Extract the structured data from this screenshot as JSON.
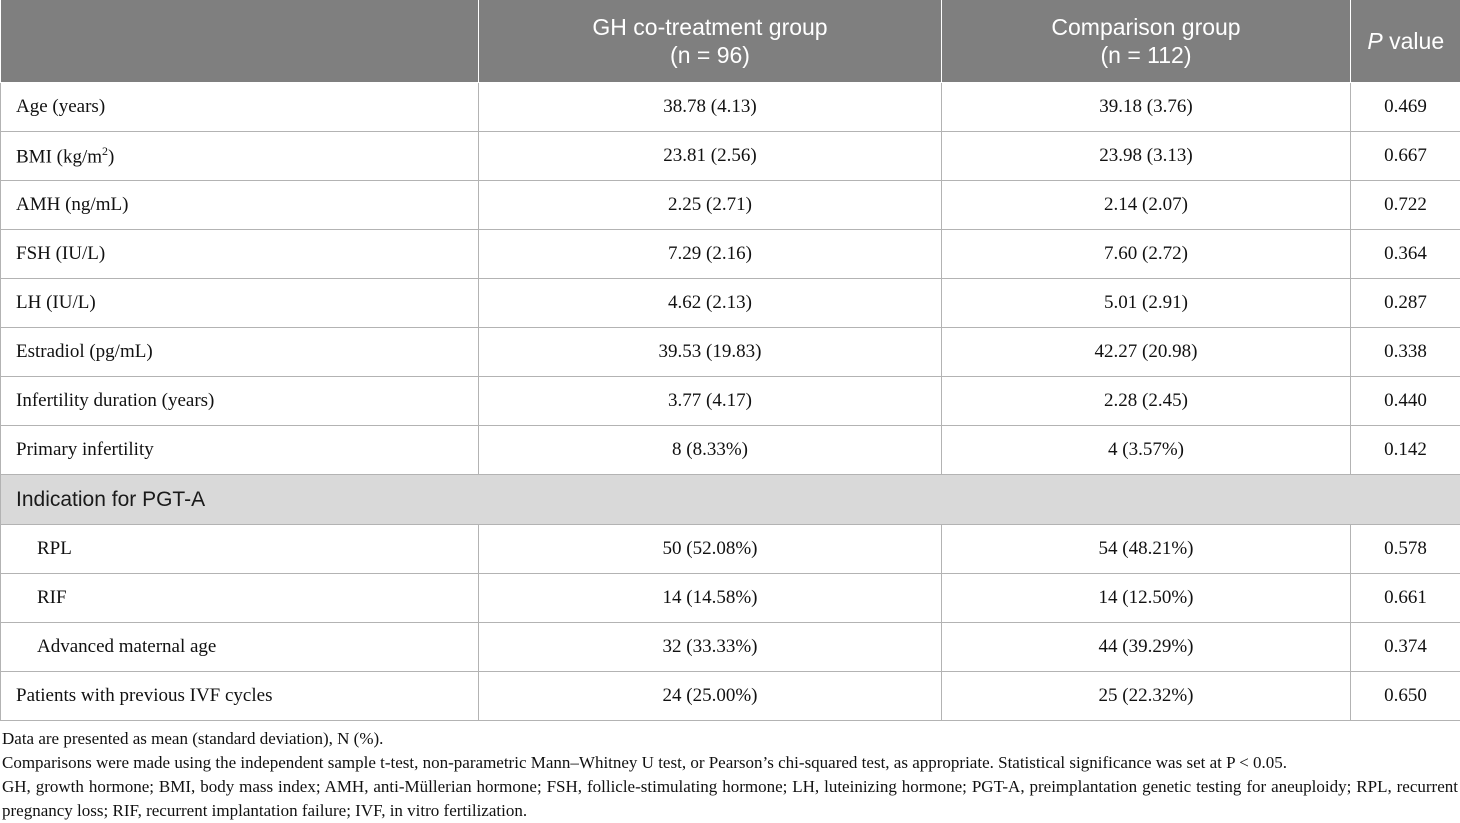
{
  "table": {
    "headers": {
      "col1": "",
      "col2_line1": "GH co-treatment group",
      "col2_line2": "(n = 96)",
      "col3_line1": "Comparison group",
      "col3_line2": "(n = 112)",
      "col4_italic": "P",
      "col4_rest": " value"
    },
    "rows": [
      {
        "label": "Age (years)",
        "gh": "38.78 (4.13)",
        "comp": "39.18 (3.76)",
        "p": "0.469"
      },
      {
        "label": "BMI (kg/m",
        "label_sup": "2",
        "label_tail": ")",
        "gh": "23.81 (2.56)",
        "comp": "23.98 (3.13)",
        "p": "0.667"
      },
      {
        "label": "AMH (ng/mL)",
        "gh": "2.25 (2.71)",
        "comp": "2.14 (2.07)",
        "p": "0.722"
      },
      {
        "label": "FSH (IU/L)",
        "gh": "7.29 (2.16)",
        "comp": "7.60 (2.72)",
        "p": "0.364"
      },
      {
        "label": "LH (IU/L)",
        "gh": "4.62 (2.13)",
        "comp": "5.01 (2.91)",
        "p": "0.287"
      },
      {
        "label": "Estradiol (pg/mL)",
        "gh": "39.53 (19.83)",
        "comp": "42.27 (20.98)",
        "p": "0.338"
      },
      {
        "label": "Infertility duration (years)",
        "gh": "3.77 (4.17)",
        "comp": "2.28 (2.45)",
        "p": "0.440"
      },
      {
        "label": "Primary infertility",
        "gh": "8 (8.33%)",
        "comp": "4 (3.57%)",
        "p": "0.142"
      },
      {
        "section": "Indication for PGT-A"
      },
      {
        "label": "RPL",
        "gh": "50 (52.08%)",
        "comp": "54 (48.21%)",
        "p": "0.578"
      },
      {
        "label": "RIF",
        "gh": "14 (14.58%)",
        "comp": "14 (12.50%)",
        "p": "0.661"
      },
      {
        "label": "Advanced maternal age",
        "gh": "32 (33.33%)",
        "comp": "44 (39.29%)",
        "p": "0.374"
      },
      {
        "label": "Patients with previous IVF cycles",
        "gh": "24 (25.00%)",
        "comp": "25 (22.32%)",
        "p": "0.650"
      }
    ]
  },
  "footnotes": {
    "line1": "Data are presented as mean (standard deviation), N (%).",
    "line2": "Comparisons were made using the independent sample t-test, non-parametric Mann–Whitney U test, or Pearson’s chi-squared test, as appropriate. Statistical significance was set at P < 0.05.",
    "line3": "GH, growth hormone; BMI, body mass index; AMH, anti-Müllerian hormone; FSH, follicle-stimulating hormone; LH, luteinizing hormone; PGT-A, preimplantation genetic testing for aneuploidy; RPL, recurrent pregnancy loss; RIF, recurrent implantation failure; IVF, in vitro fertilization."
  },
  "colors": {
    "header_bg": "#7f7f7f",
    "section_bg": "#d9d9d9",
    "border": "#b3b3b3"
  }
}
